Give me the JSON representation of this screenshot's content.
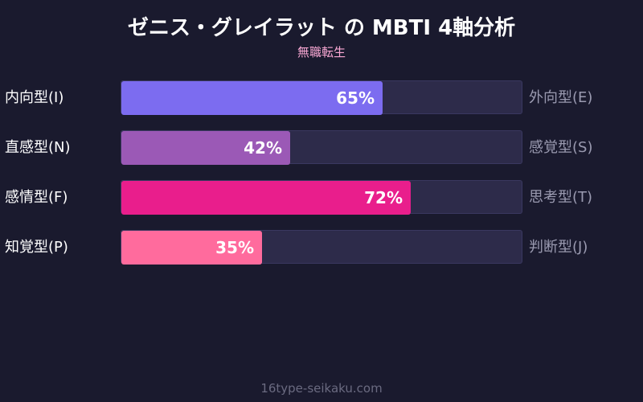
{
  "chart_data": {
    "type": "bar",
    "orientation": "horizontal",
    "title": "ゼニス・グレイラット の MBTI 4軸分析",
    "subtitle": "無職転生",
    "footer": "16type-seikaku.com",
    "xlim": [
      0,
      100
    ],
    "unit": "%",
    "rows": [
      {
        "left": "内向型(I)",
        "right": "外向型(E)",
        "value": 65,
        "label": "65%",
        "color": "#7c6cf0"
      },
      {
        "left": "直感型(N)",
        "right": "感覚型(S)",
        "value": 42,
        "label": "42%",
        "color": "#9b59b6"
      },
      {
        "left": "感情型(F)",
        "right": "思考型(T)",
        "value": 72,
        "label": "72%",
        "color": "#e91e8c"
      },
      {
        "left": "知覚型(P)",
        "right": "判断型(J)",
        "value": 35,
        "label": "35%",
        "color": "#ff6b9d"
      }
    ]
  }
}
